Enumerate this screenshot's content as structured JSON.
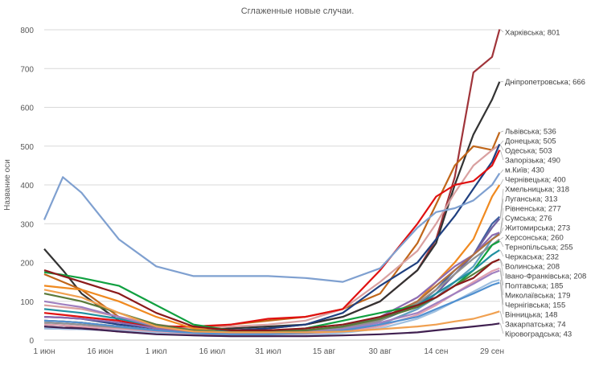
{
  "chart_data": {
    "type": "line",
    "title": "Сглаженные новые случаи.",
    "xlabel": "",
    "ylabel": "Название оси",
    "ylim": [
      0,
      800
    ],
    "yticks": [
      0,
      100,
      200,
      300,
      400,
      500,
      600,
      700,
      800
    ],
    "xticks": [
      {
        "date": "06-01",
        "label": "1 июн"
      },
      {
        "date": "06-16",
        "label": "16 июн"
      },
      {
        "date": "07-01",
        "label": "1 июл"
      },
      {
        "date": "07-16",
        "label": "16 июл"
      },
      {
        "date": "07-31",
        "label": "31 июл"
      },
      {
        "date": "08-15",
        "label": "15 авг"
      },
      {
        "date": "08-30",
        "label": "30 авг"
      },
      {
        "date": "09-14",
        "label": "14 сен"
      },
      {
        "date": "09-29",
        "label": "29 сен"
      }
    ],
    "grid": "horizontal",
    "x": [
      "06-01",
      "06-06",
      "06-11",
      "06-21",
      "07-01",
      "07-11",
      "07-21",
      "07-31",
      "08-10",
      "08-20",
      "08-30",
      "09-09",
      "09-14",
      "09-19",
      "09-24",
      "09-29",
      "10-01"
    ],
    "series": [
      {
        "name": "Харківська",
        "label": "Харківська; 801",
        "color": "#A0343A",
        "values": [
          40,
          38,
          32,
          22,
          16,
          16,
          20,
          30,
          40,
          60,
          100,
          180,
          260,
          420,
          690,
          730,
          801
        ]
      },
      {
        "name": "Дніпропетровська",
        "label": "Дніпропетровська; 666",
        "color": "#333333",
        "values": [
          235,
          180,
          120,
          50,
          30,
          25,
          30,
          35,
          40,
          60,
          100,
          180,
          250,
          400,
          530,
          620,
          666
        ]
      },
      {
        "name": "Львівська",
        "label": "Львівська; 536",
        "color": "#C0661A",
        "values": [
          170,
          150,
          130,
          60,
          30,
          30,
          40,
          50,
          60,
          80,
          120,
          250,
          350,
          450,
          500,
          490,
          536
        ]
      },
      {
        "name": "Одеська",
        "label": "Одеська; 503",
        "color": "#D9A0A0",
        "values": [
          90,
          85,
          80,
          60,
          40,
          30,
          35,
          40,
          50,
          80,
          150,
          230,
          300,
          380,
          450,
          490,
          503
        ]
      },
      {
        "name": "Донецька",
        "label": "Донецька; 505",
        "color": "#1F3F7F",
        "values": [
          60,
          58,
          55,
          40,
          30,
          20,
          25,
          30,
          40,
          70,
          140,
          200,
          260,
          320,
          390,
          460,
          505
        ]
      },
      {
        "name": "Запорізька",
        "label": "Запорізька; 490",
        "color": "#E01010",
        "values": [
          70,
          65,
          60,
          50,
          35,
          35,
          40,
          55,
          60,
          80,
          180,
          300,
          370,
          400,
          410,
          450,
          490
        ]
      },
      {
        "name": "м.Київ",
        "label": "м.Київ; 430",
        "color": "#7FA0D0",
        "values": [
          310,
          420,
          380,
          260,
          190,
          165,
          165,
          165,
          160,
          150,
          185,
          290,
          330,
          340,
          360,
          400,
          430
        ]
      },
      {
        "name": "Чернівецька",
        "label": "Чернівецька; 400",
        "color": "#F08A20",
        "values": [
          140,
          135,
          130,
          100,
          60,
          30,
          20,
          20,
          25,
          30,
          50,
          100,
          150,
          200,
          260,
          370,
          400
        ]
      },
      {
        "name": "Хмельницька",
        "label": "Хмельницька; 318",
        "color": "#4060A0",
        "values": [
          50,
          48,
          45,
          35,
          25,
          15,
          15,
          15,
          20,
          30,
          50,
          90,
          130,
          180,
          220,
          300,
          318
        ]
      },
      {
        "name": "Луганська",
        "label": "Луганська; 313",
        "color": "#7060A0",
        "values": [
          30,
          29,
          28,
          25,
          20,
          15,
          12,
          12,
          15,
          20,
          40,
          80,
          120,
          170,
          220,
          290,
          313
        ]
      },
      {
        "name": "Сумська",
        "label": "Сумська; 276",
        "color": "#60A0C0",
        "values": [
          40,
          38,
          35,
          30,
          20,
          15,
          15,
          15,
          20,
          25,
          40,
          80,
          110,
          150,
          190,
          260,
          276
        ]
      },
      {
        "name": "Рівненська",
        "label": "Рівненська; 277",
        "color": "#8C6BB1",
        "values": [
          60,
          58,
          55,
          45,
          30,
          20,
          20,
          20,
          25,
          35,
          60,
          110,
          150,
          190,
          220,
          270,
          277
        ]
      },
      {
        "name": "Житомирська",
        "label": "Житомирська; 273",
        "color": "#B07040",
        "values": [
          50,
          48,
          45,
          35,
          25,
          18,
          15,
          18,
          22,
          30,
          55,
          100,
          140,
          180,
          220,
          260,
          273
        ]
      },
      {
        "name": "Херсонська",
        "label": "Херсонська; 260",
        "color": "#909090",
        "values": [
          45,
          43,
          40,
          32,
          22,
          15,
          15,
          18,
          22,
          30,
          50,
          95,
          130,
          170,
          210,
          245,
          260
        ]
      },
      {
        "name": "Тернопільська",
        "label": "Тернопільська; 255",
        "color": "#10A040",
        "values": [
          175,
          168,
          160,
          140,
          90,
          40,
          25,
          20,
          30,
          50,
          70,
          90,
          110,
          140,
          180,
          245,
          255
        ]
      },
      {
        "name": "Черкаська",
        "label": "Черкаська; 232",
        "color": "#2090A0",
        "values": [
          80,
          75,
          70,
          55,
          35,
          25,
          22,
          22,
          25,
          35,
          55,
          90,
          120,
          150,
          180,
          220,
          232
        ]
      },
      {
        "name": "Волинська",
        "label": "Волинська; 208",
        "color": "#5A7A3A",
        "values": [
          120,
          110,
          100,
          70,
          40,
          25,
          20,
          22,
          25,
          35,
          55,
          85,
          110,
          140,
          170,
          200,
          208
        ]
      },
      {
        "name": "Івано-Франківська",
        "label": "Івано-Франківська; 208",
        "color": "#8B1A1A",
        "values": [
          180,
          165,
          150,
          120,
          70,
          35,
          25,
          25,
          30,
          40,
          60,
          90,
          110,
          140,
          160,
          200,
          208
        ]
      },
      {
        "name": "Полтавська",
        "label": "Полтавська; 185",
        "color": "#E0A0B0",
        "values": [
          40,
          38,
          35,
          28,
          20,
          15,
          12,
          12,
          15,
          20,
          35,
          65,
          90,
          120,
          150,
          178,
          185
        ]
      },
      {
        "name": "Миколаївська",
        "label": "Миколаївська; 179",
        "color": "#A080C0",
        "values": [
          100,
          92,
          85,
          60,
          35,
          22,
          18,
          18,
          20,
          28,
          45,
          70,
          95,
          120,
          145,
          172,
          179
        ]
      },
      {
        "name": "Чернігівська",
        "label": "Чернігівська; 155",
        "color": "#A0C0E0",
        "values": [
          30,
          29,
          28,
          24,
          18,
          12,
          10,
          10,
          12,
          18,
          30,
          55,
          75,
          100,
          125,
          150,
          155
        ]
      },
      {
        "name": "Вінницька",
        "label": "Вінницька; 148",
        "color": "#5090D0",
        "values": [
          50,
          48,
          45,
          35,
          25,
          18,
          15,
          15,
          18,
          25,
          40,
          60,
          80,
          100,
          120,
          142,
          148
        ]
      },
      {
        "name": "Закарпатська",
        "label": "Закарпатська; 74",
        "color": "#F0A050",
        "values": [
          130,
          120,
          110,
          70,
          35,
          22,
          20,
          20,
          20,
          22,
          28,
          35,
          40,
          48,
          55,
          68,
          74
        ]
      },
      {
        "name": "Кіровоградська",
        "label": "Кіровоградська; 43",
        "color": "#402050",
        "values": [
          35,
          32,
          30,
          22,
          15,
          12,
          10,
          10,
          10,
          12,
          15,
          20,
          25,
          30,
          35,
          40,
          43
        ]
      }
    ]
  }
}
